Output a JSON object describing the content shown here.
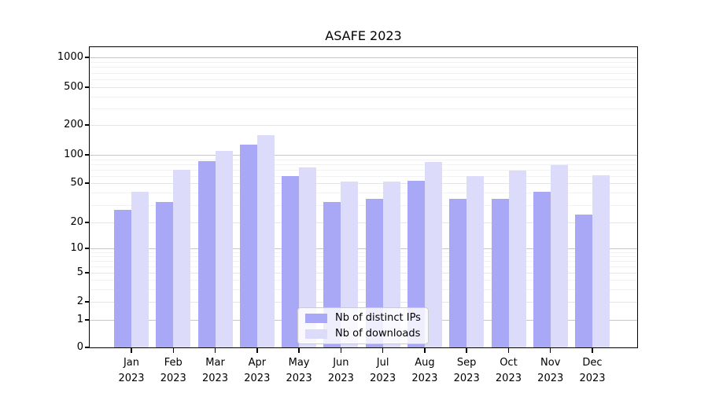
{
  "chart_data": {
    "type": "bar",
    "title": "ASAFE 2023",
    "categories": [
      "Jan",
      "Feb",
      "Mar",
      "Apr",
      "May",
      "Jun",
      "Jul",
      "Aug",
      "Sep",
      "Oct",
      "Nov",
      "Dec"
    ],
    "category_year": "2023",
    "series": [
      {
        "name": "Nb of distinct IPs",
        "color": "#a8a8f6",
        "values": [
          27,
          32,
          85,
          127,
          60,
          32,
          35,
          53,
          35,
          35,
          41,
          24
        ]
      },
      {
        "name": "Nb of downloads",
        "color": "#dcdcfa",
        "values": [
          41,
          70,
          110,
          158,
          74,
          52,
          52,
          84,
          60,
          68,
          78,
          61
        ]
      }
    ],
    "xlabel": "",
    "ylabel": "",
    "y_scale": "symlog",
    "y_ticks": [
      0,
      1,
      2,
      5,
      10,
      20,
      50,
      100,
      200,
      500,
      1000
    ],
    "ylim": [
      0,
      1270
    ],
    "grid": true,
    "legend_position": "lower center",
    "colors": {
      "grid_decade": "#c7c7c7",
      "grid_major": "#e5e5e5",
      "grid_minor": "#f2f2f2",
      "spine": "#000000",
      "text": "#000000"
    }
  }
}
